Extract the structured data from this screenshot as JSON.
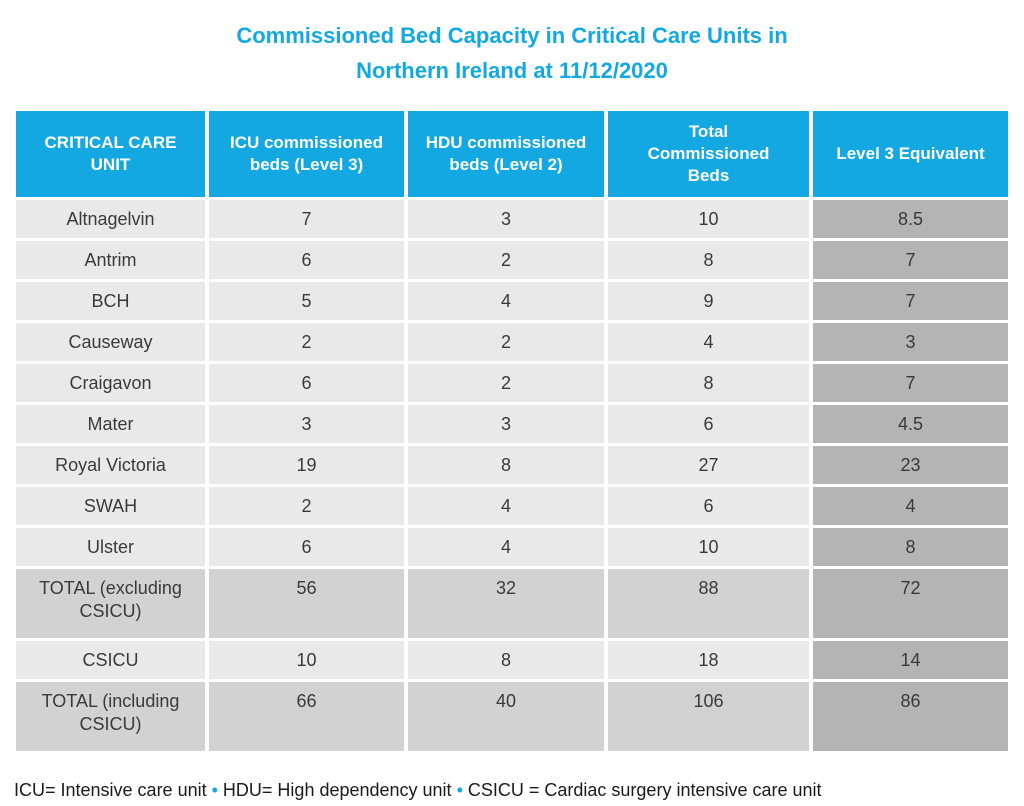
{
  "header": {
    "title_line1": "Commissioned Bed Capacity in Critical Care Units in",
    "title_line2": "Northern Ireland at 11/12/2020"
  },
  "chart_data": {
    "type": "table",
    "title": "Commissioned Bed Capacity in Critical Care Units in Northern Ireland at 11/12/2020",
    "columns": [
      "CRITICAL CARE UNIT",
      "ICU commissioned beds (Level 3)",
      "HDU commissioned beds (Level 2)",
      "Total Commissioned Beds",
      "Level 3 Equivalent"
    ],
    "rows": [
      {
        "cells": [
          "Altnagelvin",
          7,
          3,
          10,
          8.5
        ],
        "emphasis": false
      },
      {
        "cells": [
          "Antrim",
          6,
          2,
          8,
          7
        ],
        "emphasis": false
      },
      {
        "cells": [
          "BCH",
          5,
          4,
          9,
          7
        ],
        "emphasis": false
      },
      {
        "cells": [
          "Causeway",
          2,
          2,
          4,
          3
        ],
        "emphasis": false
      },
      {
        "cells": [
          "Craigavon",
          6,
          2,
          8,
          7
        ],
        "emphasis": false
      },
      {
        "cells": [
          "Mater",
          3,
          3,
          6,
          4.5
        ],
        "emphasis": false
      },
      {
        "cells": [
          "Royal Victoria",
          19,
          8,
          27,
          23
        ],
        "emphasis": false
      },
      {
        "cells": [
          "SWAH",
          2,
          4,
          6,
          4
        ],
        "emphasis": false
      },
      {
        "cells": [
          "Ulster",
          6,
          4,
          10,
          8
        ],
        "emphasis": false
      },
      {
        "cells": [
          "TOTAL (excluding CSICU)",
          56,
          32,
          88,
          72
        ],
        "emphasis": true
      },
      {
        "cells": [
          "CSICU",
          10,
          8,
          18,
          14
        ],
        "emphasis": false
      },
      {
        "cells": [
          "TOTAL (including CSICU)",
          66,
          40,
          106,
          86
        ],
        "emphasis": true
      }
    ]
  },
  "footnote": {
    "parts": [
      "ICU= Intensive care unit",
      "HDU= High dependency unit",
      "CSICU = Cardiac surgery intensive care unit"
    ],
    "separator": "•"
  },
  "colors": {
    "accent": "#14a8e2",
    "header_text": "#ffffff",
    "row_bg": "#e9e9e9",
    "total_row_bg": "#d2d2d2",
    "level3_col_bg": "#b4b4b4",
    "body_text": "#3a3a3a",
    "footnote_text": "#1a1a1a"
  }
}
